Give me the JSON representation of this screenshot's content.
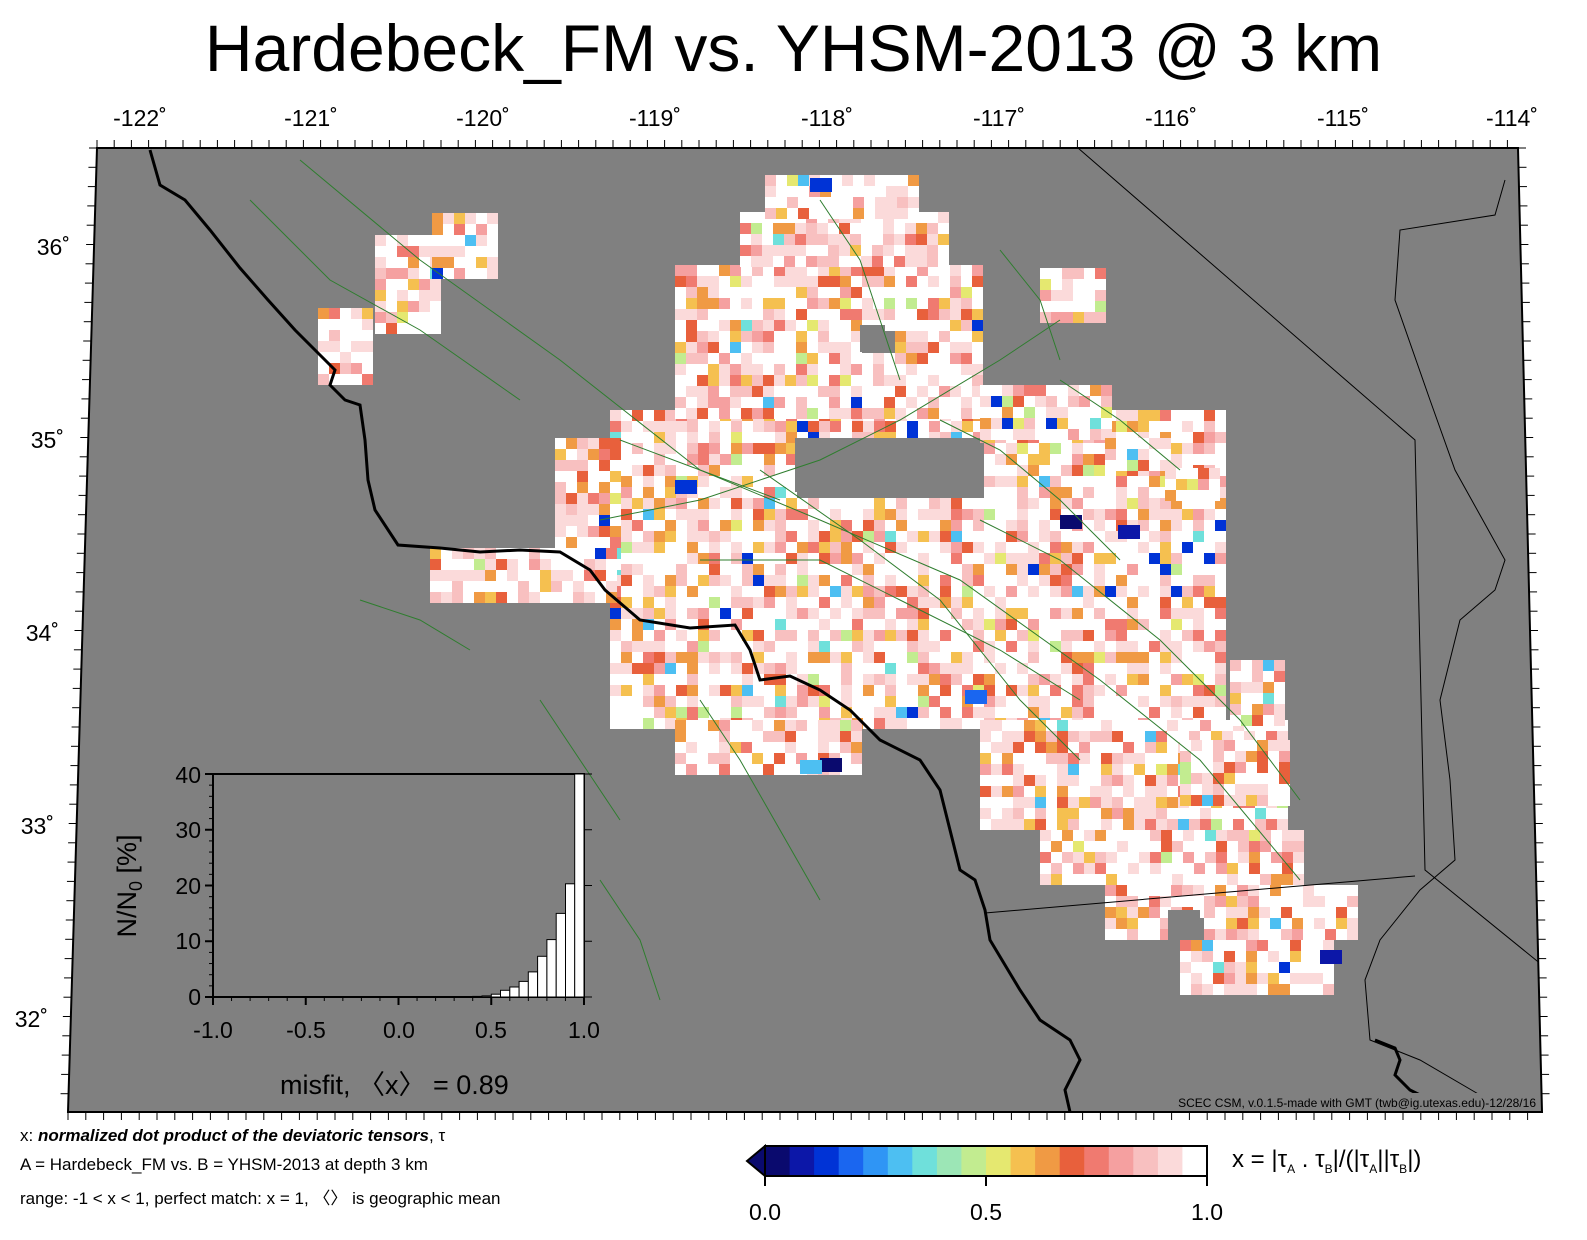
{
  "title": "Hardebeck_FM vs. YHSM-2013 @ 3 km",
  "map": {
    "lon_ticks": [
      "-122˚",
      "-121˚",
      "-120˚",
      "-119˚",
      "-118˚",
      "-117˚",
      "-116˚",
      "-115˚",
      "-114˚"
    ],
    "lat_ticks": [
      "36˚",
      "35˚",
      "34˚",
      "33˚",
      "32˚"
    ],
    "lon_range": [
      -122,
      -114
    ],
    "lat_range": [
      31.5,
      36.5
    ],
    "credit": "SCEC CSM, v.0.1.5-made with GMT (twb@ig.utexas.edu)-12/28/16",
    "colors": {
      "ocean_land_background": "#808080",
      "coastline": "#000000",
      "faults": "#2e7d2e"
    }
  },
  "histogram": {
    "ylabel_main": "N/N",
    "ylabel_sub": "0",
    "ylabel_unit": " [%]",
    "y_ticks": [
      "0",
      "10",
      "20",
      "30",
      "40"
    ],
    "x_ticks": [
      "-1.0",
      "-0.5",
      "0.0",
      "0.5",
      "1.0"
    ],
    "misfit_label": "misfit, 〈x〉 = 0.89"
  },
  "chart_data": {
    "type": "bar",
    "x_bin_centers": [
      -0.975,
      -0.925,
      -0.875,
      -0.825,
      -0.775,
      -0.725,
      -0.675,
      -0.625,
      -0.575,
      -0.525,
      -0.475,
      -0.425,
      -0.375,
      -0.325,
      -0.275,
      -0.225,
      -0.175,
      -0.125,
      -0.075,
      -0.025,
      0.025,
      0.075,
      0.125,
      0.175,
      0.225,
      0.275,
      0.325,
      0.375,
      0.425,
      0.475,
      0.525,
      0.575,
      0.625,
      0.675,
      0.725,
      0.775,
      0.825,
      0.875,
      0.925,
      0.975
    ],
    "values": [
      0,
      0,
      0,
      0,
      0,
      0,
      0,
      0,
      0,
      0,
      0,
      0,
      0,
      0,
      0,
      0,
      0,
      0,
      0,
      0,
      0,
      0,
      0,
      0,
      0,
      0,
      0,
      0,
      0.1,
      0.2,
      0.5,
      1.2,
      1.8,
      2.8,
      4.5,
      7.3,
      10.3,
      15.0,
      20.3,
      40.0
    ],
    "xlim": [
      -1.0,
      1.0
    ],
    "ylim": [
      0,
      40
    ],
    "xlabel": "misfit, 〈x〉 = 0.89",
    "ylabel": "N/N0 [%]"
  },
  "colorbar": {
    "ticks": [
      "0.0",
      "0.5",
      "1.0"
    ],
    "colors": [
      "#0a0a6e",
      "#0c17a8",
      "#0033d6",
      "#1a66f0",
      "#2f95f5",
      "#4dbff2",
      "#6fe0db",
      "#9ce6b6",
      "#c2ec90",
      "#e5e870",
      "#f5c050",
      "#f09a44",
      "#e8603c",
      "#f07a70",
      "#f5a0a0",
      "#f8c0c0",
      "#fbdada",
      "#ffffff"
    ],
    "formula": {
      "a": "x = |τ",
      "b": "A",
      "c": " . τ",
      "d": "B",
      "e": "|/(|τ",
      "f": "A",
      "g": "||τ",
      "h": "B",
      "i": "|)"
    }
  },
  "footer": {
    "line1_prefix": "x: ",
    "line1_bold": "normalized dot product of the deviatoric tensors",
    "line1_suffix": ", τ",
    "line2": "A = Hardebeck_FM vs.  B = YHSM-2013 at depth 3 km",
    "line3": "range: -1 < x < 1, perfect match: x = 1, 〈〉 is geographic mean"
  }
}
